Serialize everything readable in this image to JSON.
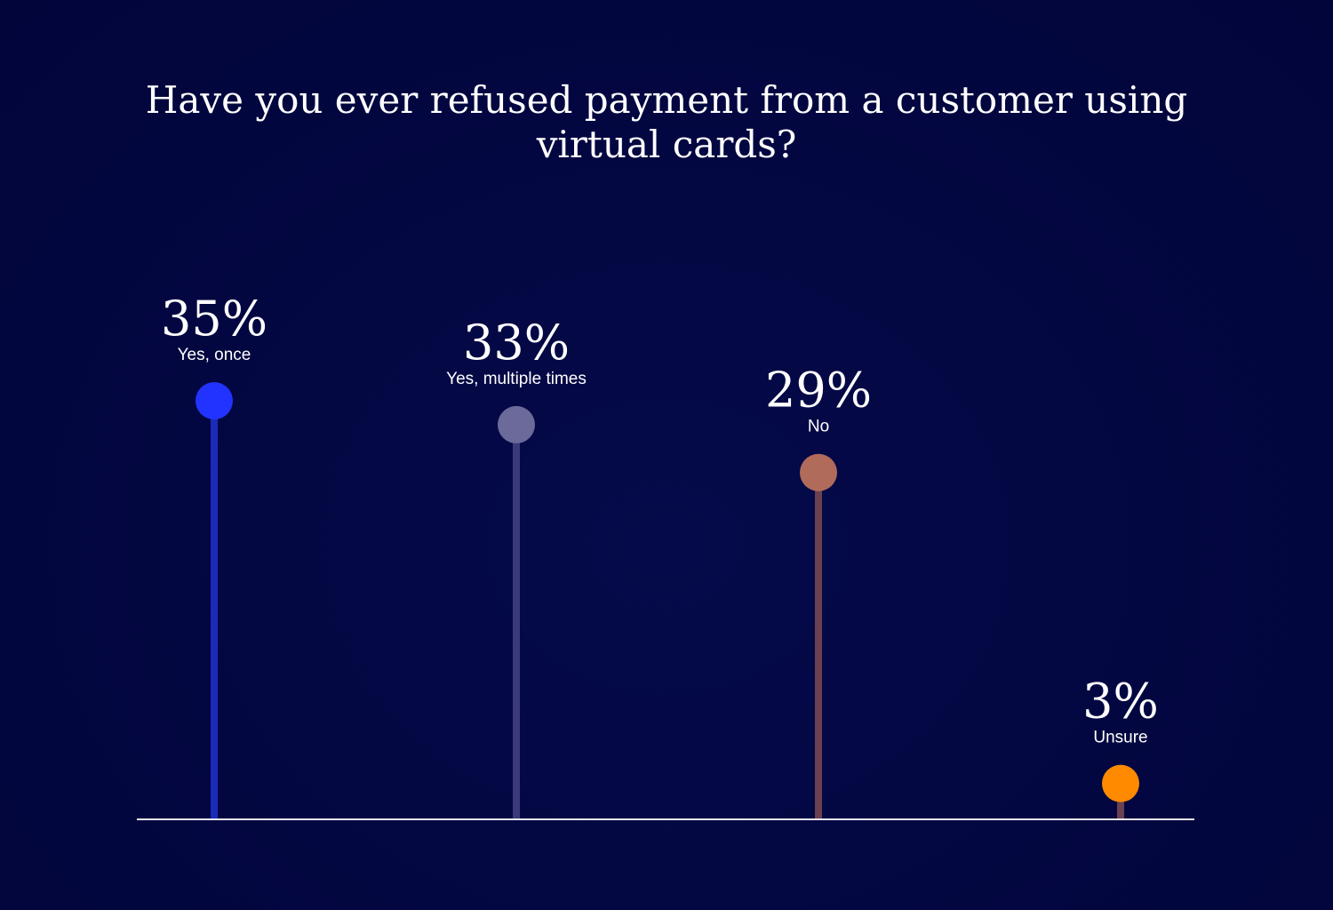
{
  "chart_data": {
    "type": "lollipop",
    "title": "Have you ever refused payment from a customer using virtual cards?",
    "title_lines": [
      "Have you ever refused payment from a customer using",
      "virtual cards?"
    ],
    "categories": [
      "Yes, once",
      "Yes, multiple times",
      "No",
      "Unsure"
    ],
    "values": [
      35,
      33,
      29,
      3
    ],
    "value_labels": [
      "35%",
      "33%",
      "29%",
      "3%"
    ],
    "unit": "%",
    "colors": {
      "dots": [
        "#2233ff",
        "#6b6a9a",
        "#b06b5a",
        "#ff8a00"
      ],
      "stems": [
        "#1a2bb8",
        "#3a3a7a",
        "#6a4150",
        "#6a4150"
      ],
      "baseline": "#e6e6ef"
    },
    "grid": false,
    "legend": "none"
  }
}
